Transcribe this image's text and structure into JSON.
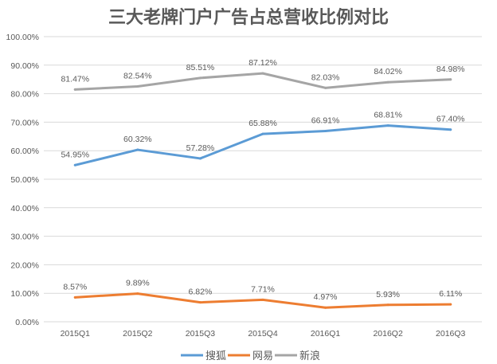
{
  "chart_data": {
    "type": "line",
    "title": "三大老牌门户广告占总营收比例对比",
    "xlabel": "",
    "ylabel": "",
    "categories": [
      "2015Q1",
      "2015Q2",
      "2015Q3",
      "2015Q4",
      "2016Q1",
      "2016Q2",
      "2016Q3"
    ],
    "ylim": [
      0,
      100
    ],
    "yticks": [
      "0.00%",
      "10.00%",
      "20.00%",
      "30.00%",
      "40.00%",
      "50.00%",
      "60.00%",
      "70.00%",
      "80.00%",
      "90.00%",
      "100.00%"
    ],
    "grid": true,
    "legend_position": "bottom",
    "series": [
      {
        "name": "搜狐",
        "color": "#5b9bd5",
        "values": [
          54.95,
          60.32,
          57.28,
          65.88,
          66.91,
          68.81,
          67.4
        ],
        "labels": [
          "54.95%",
          "60.32%",
          "57.28%",
          "65.88%",
          "66.91%",
          "68.81%",
          "67.40%"
        ]
      },
      {
        "name": "网易",
        "color": "#ed7d31",
        "values": [
          8.57,
          9.89,
          6.82,
          7.71,
          4.97,
          5.93,
          6.11
        ],
        "labels": [
          "8.57%",
          "9.89%",
          "6.82%",
          "7.71%",
          "4.97%",
          "5.93%",
          "6.11%"
        ]
      },
      {
        "name": "新浪",
        "color": "#a5a5a5",
        "values": [
          81.47,
          82.54,
          85.51,
          87.12,
          82.03,
          84.02,
          84.98
        ],
        "labels": [
          "81.47%",
          "82.54%",
          "85.51%",
          "87.12%",
          "82.03%",
          "84.02%",
          "84.98%"
        ]
      }
    ]
  }
}
